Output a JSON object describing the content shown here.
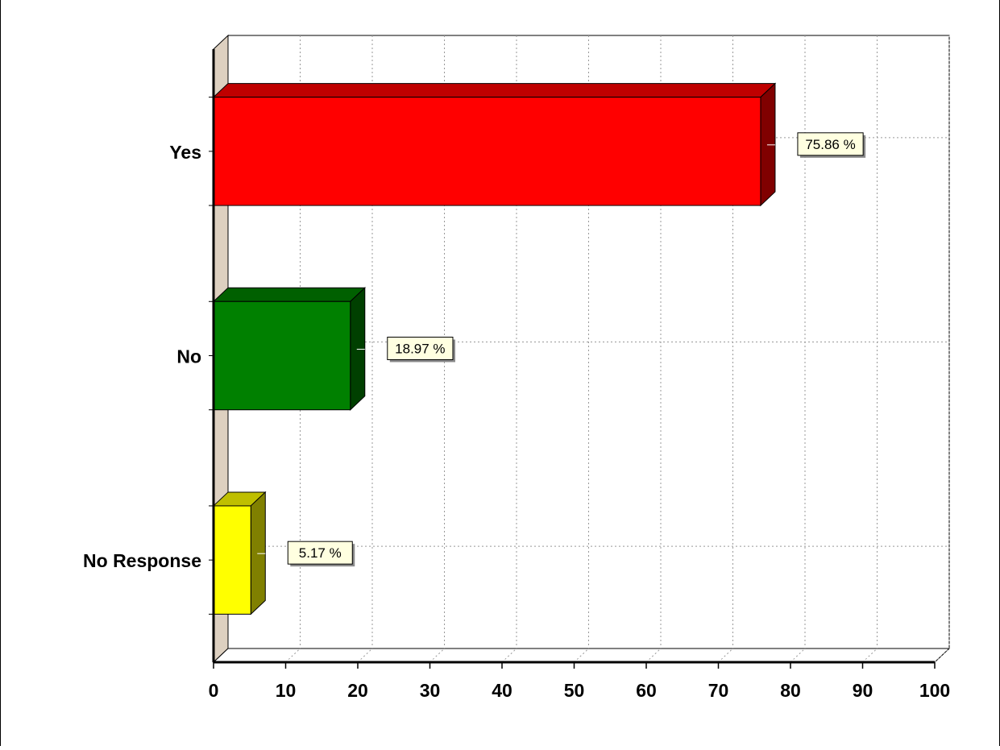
{
  "chart_data": {
    "type": "bar",
    "orientation": "horizontal",
    "style": "3d",
    "categories": [
      "Yes",
      "No",
      "No Response"
    ],
    "values": [
      75.86,
      18.97,
      5.17
    ],
    "value_labels": [
      "75.86 %",
      "18.97 %",
      "5.17 %"
    ],
    "colors": [
      "#ff0000",
      "#008000",
      "#ffff00"
    ],
    "title": "",
    "xlabel": "",
    "ylabel": "",
    "xlim": [
      0,
      100
    ],
    "xticks": [
      0,
      10,
      20,
      30,
      40,
      50,
      60,
      70,
      80,
      90,
      100
    ],
    "grid": "dotted",
    "legend": "none"
  }
}
